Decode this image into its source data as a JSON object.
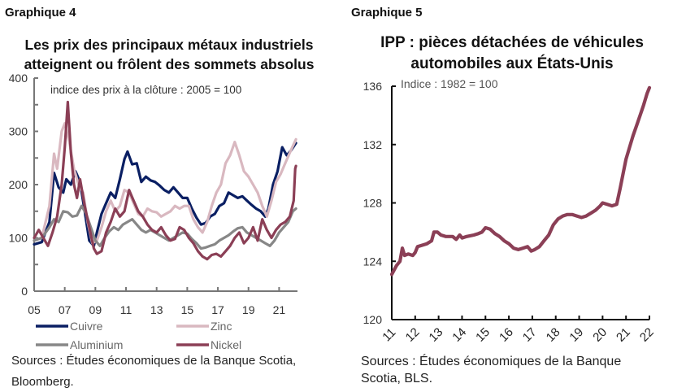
{
  "panels": [
    {
      "label": "Graphique 4"
    },
    {
      "label": "Graphique 5"
    }
  ],
  "chart_data": [
    {
      "type": "line",
      "title": "Les prix des principaux métaux industriels atteignent ou frôlent des sommets absolus",
      "title_lines": [
        "Les prix des principaux métaux industriels",
        "atteignent ou frôlent des sommets absolus"
      ],
      "annotation": "indice des prix à la clôture : 2005 = 100",
      "xlabel": "",
      "ylabel": "",
      "xlim": [
        2005,
        2022.2
      ],
      "ylim": [
        0,
        400
      ],
      "yticks": [
        0,
        100,
        200,
        300,
        400
      ],
      "ytick_labels": [
        "0",
        "100",
        "200",
        "300",
        "400"
      ],
      "xticks": [
        2005,
        2007,
        2009,
        2011,
        2013,
        2015,
        2017,
        2019,
        2021
      ],
      "xtick_labels": [
        "05",
        "07",
        "09",
        "11",
        "13",
        "15",
        "17",
        "19",
        "21"
      ],
      "legend_position": "bottom",
      "series": [
        {
          "name": "Cuivre",
          "color": "#0a1f63",
          "x": [
            2005.0,
            2005.5,
            2006.0,
            2006.3,
            2006.6,
            2006.9,
            2007.1,
            2007.4,
            2007.7,
            2008.0,
            2008.3,
            2008.6,
            2008.9,
            2009.1,
            2009.4,
            2009.7,
            2010.0,
            2010.3,
            2010.6,
            2010.9,
            2011.1,
            2011.4,
            2011.7,
            2012.0,
            2012.3,
            2012.6,
            2012.9,
            2013.2,
            2013.5,
            2013.8,
            2014.1,
            2014.4,
            2014.7,
            2015.0,
            2015.3,
            2015.6,
            2015.9,
            2016.2,
            2016.5,
            2016.8,
            2017.1,
            2017.4,
            2017.7,
            2018.0,
            2018.3,
            2018.6,
            2018.9,
            2019.2,
            2019.5,
            2019.8,
            2020.1,
            2020.3,
            2020.6,
            2020.9,
            2021.2,
            2021.5,
            2021.8,
            2022.1
          ],
          "values": [
            88,
            92,
            130,
            222,
            195,
            185,
            210,
            200,
            225,
            205,
            150,
            95,
            85,
            110,
            145,
            165,
            185,
            175,
            210,
            248,
            262,
            238,
            240,
            205,
            215,
            208,
            205,
            198,
            190,
            185,
            195,
            185,
            175,
            175,
            155,
            138,
            125,
            128,
            140,
            145,
            160,
            165,
            185,
            180,
            175,
            178,
            170,
            162,
            155,
            150,
            140,
            155,
            200,
            225,
            270,
            255,
            265,
            278
          ]
        },
        {
          "name": "Zinc",
          "color": "#d9b8c0",
          "x": [
            2005.0,
            2005.5,
            2006.0,
            2006.3,
            2006.5,
            2006.8,
            2007.0,
            2007.3,
            2007.6,
            2007.9,
            2008.2,
            2008.5,
            2008.8,
            2009.1,
            2009.4,
            2009.7,
            2010.0,
            2010.3,
            2010.6,
            2010.9,
            2011.2,
            2011.5,
            2011.8,
            2012.1,
            2012.4,
            2012.7,
            2013.0,
            2013.3,
            2013.6,
            2013.9,
            2014.2,
            2014.5,
            2014.8,
            2015.1,
            2015.4,
            2015.7,
            2016.0,
            2016.3,
            2016.6,
            2016.9,
            2017.2,
            2017.5,
            2017.8,
            2018.1,
            2018.4,
            2018.7,
            2019.0,
            2019.3,
            2019.6,
            2019.9,
            2020.2,
            2020.5,
            2020.8,
            2021.1,
            2021.4,
            2021.7,
            2022.1
          ],
          "values": [
            95,
            100,
            160,
            258,
            230,
            300,
            315,
            280,
            230,
            200,
            185,
            130,
            90,
            95,
            120,
            150,
            170,
            150,
            160,
            190,
            185,
            165,
            145,
            140,
            155,
            150,
            148,
            140,
            145,
            150,
            160,
            155,
            160,
            160,
            135,
            120,
            110,
            130,
            160,
            185,
            200,
            240,
            255,
            280,
            255,
            225,
            215,
            200,
            185,
            160,
            140,
            170,
            205,
            220,
            240,
            260,
            285
          ]
        },
        {
          "name": "Aluminium",
          "color": "#878787",
          "x": [
            2005.0,
            2005.5,
            2006.0,
            2006.3,
            2006.6,
            2006.9,
            2007.2,
            2007.5,
            2007.8,
            2008.1,
            2008.4,
            2008.7,
            2009.0,
            2009.3,
            2009.6,
            2009.9,
            2010.2,
            2010.5,
            2010.8,
            2011.1,
            2011.4,
            2011.7,
            2012.0,
            2012.3,
            2012.6,
            2012.9,
            2013.2,
            2013.5,
            2013.8,
            2014.1,
            2014.4,
            2014.7,
            2015.0,
            2015.3,
            2015.6,
            2015.9,
            2016.2,
            2016.5,
            2016.8,
            2017.1,
            2017.4,
            2017.7,
            2018.0,
            2018.3,
            2018.6,
            2018.9,
            2019.2,
            2019.5,
            2019.8,
            2020.1,
            2020.4,
            2020.7,
            2021.0,
            2021.3,
            2021.6,
            2021.9,
            2022.1
          ],
          "values": [
            95,
            100,
            120,
            135,
            130,
            150,
            148,
            140,
            142,
            160,
            145,
            120,
            95,
            85,
            100,
            112,
            120,
            115,
            125,
            130,
            135,
            125,
            115,
            110,
            115,
            110,
            105,
            100,
            95,
            100,
            105,
            110,
            108,
            98,
            90,
            80,
            82,
            85,
            88,
            95,
            100,
            105,
            112,
            118,
            120,
            110,
            105,
            100,
            95,
            90,
            85,
            95,
            110,
            120,
            130,
            150,
            155
          ]
        },
        {
          "name": "Nickel",
          "color": "#8b3f56",
          "x": [
            2005.0,
            2005.3,
            2005.6,
            2005.9,
            2006.2,
            2006.5,
            2006.8,
            2007.0,
            2007.2,
            2007.4,
            2007.6,
            2007.8,
            2008.0,
            2008.3,
            2008.6,
            2008.9,
            2009.1,
            2009.4,
            2009.7,
            2010.0,
            2010.3,
            2010.6,
            2010.9,
            2011.2,
            2011.5,
            2011.8,
            2012.1,
            2012.4,
            2012.7,
            2013.0,
            2013.3,
            2013.6,
            2013.9,
            2014.2,
            2014.5,
            2014.8,
            2015.1,
            2015.4,
            2015.7,
            2016.0,
            2016.3,
            2016.6,
            2016.9,
            2017.2,
            2017.5,
            2017.8,
            2018.1,
            2018.4,
            2018.7,
            2019.0,
            2019.3,
            2019.6,
            2019.9,
            2020.2,
            2020.5,
            2020.8,
            2021.1,
            2021.4,
            2021.7,
            2021.95,
            2022.05,
            2022.1
          ],
          "values": [
            100,
            115,
            100,
            85,
            110,
            140,
            200,
            270,
            355,
            260,
            200,
            175,
            210,
            160,
            120,
            80,
            70,
            75,
            110,
            130,
            155,
            140,
            150,
            190,
            170,
            150,
            140,
            125,
            115,
            110,
            120,
            105,
            95,
            98,
            120,
            115,
            100,
            90,
            75,
            65,
            60,
            68,
            70,
            65,
            75,
            85,
            100,
            110,
            90,
            100,
            120,
            95,
            135,
            115,
            100,
            115,
            125,
            130,
            140,
            170,
            230,
            235
          ]
        }
      ]
    },
    {
      "type": "line",
      "title": "IPP : pièces détachées de véhicules automobiles aux États-Unis",
      "title_lines": [
        "IPP : pièces détachées de véhicules",
        "automobiles aux États-Unis"
      ],
      "annotation": "Indice : 1982 = 100",
      "xlabel": "",
      "ylabel": "",
      "xlim": [
        2011,
        2022
      ],
      "ylim": [
        120,
        136
      ],
      "yticks": [
        120,
        124,
        128,
        132,
        136
      ],
      "ytick_labels": [
        "120",
        "124",
        "128",
        "132",
        "136"
      ],
      "xticks": [
        2011,
        2012,
        2013,
        2014,
        2015,
        2016,
        2017,
        2018,
        2019,
        2020,
        2021,
        2022
      ],
      "xtick_labels": [
        "11",
        "12",
        "13",
        "14",
        "15",
        "16",
        "17",
        "18",
        "19",
        "20",
        "21",
        "22"
      ],
      "series": [
        {
          "name": "IPP pièces détachées",
          "color": "#8b3f56",
          "x": [
            2011.0,
            2011.2,
            2011.35,
            2011.45,
            2011.55,
            2011.7,
            2011.9,
            2012.0,
            2012.1,
            2012.3,
            2012.5,
            2012.7,
            2012.8,
            2012.95,
            2013.1,
            2013.3,
            2013.6,
            2013.75,
            2013.9,
            2014.0,
            2014.2,
            2014.5,
            2014.7,
            2014.85,
            2015.0,
            2015.2,
            2015.4,
            2015.6,
            2015.8,
            2016.0,
            2016.2,
            2016.4,
            2016.6,
            2016.8,
            2016.95,
            2017.1,
            2017.3,
            2017.5,
            2017.7,
            2017.9,
            2018.1,
            2018.3,
            2018.5,
            2018.7,
            2018.9,
            2019.1,
            2019.3,
            2019.5,
            2019.7,
            2019.9,
            2020.0,
            2020.2,
            2020.4,
            2020.6,
            2020.75,
            2020.9,
            2021.0,
            2021.15,
            2021.3,
            2021.45,
            2021.6,
            2021.75,
            2021.9,
            2022.0
          ],
          "values": [
            123.1,
            123.7,
            124.0,
            124.9,
            124.4,
            124.5,
            124.4,
            124.6,
            125.0,
            125.1,
            125.2,
            125.4,
            126.0,
            126.0,
            125.8,
            125.7,
            125.7,
            125.5,
            125.8,
            125.6,
            125.7,
            125.8,
            125.9,
            126.0,
            126.3,
            126.2,
            125.9,
            125.7,
            125.4,
            125.2,
            124.9,
            124.8,
            124.9,
            125.0,
            124.7,
            124.8,
            125.0,
            125.4,
            125.8,
            126.5,
            126.9,
            127.1,
            127.2,
            127.2,
            127.1,
            127.0,
            127.1,
            127.3,
            127.5,
            127.8,
            128.0,
            127.9,
            127.8,
            127.9,
            129.0,
            130.2,
            131.0,
            131.8,
            132.6,
            133.3,
            134.0,
            134.7,
            135.5,
            135.9
          ]
        }
      ]
    }
  ],
  "legend": [
    {
      "label": "Cuivre",
      "color": "#0a1f63"
    },
    {
      "label": "Zinc",
      "color": "#d9b8c0"
    },
    {
      "label": "Aluminium",
      "color": "#878787"
    },
    {
      "label": "Nickel",
      "color": "#8b3f56"
    }
  ],
  "sources": [
    {
      "lines": [
        "Sources : Études économiques de la Banque Scotia,",
        "Bloomberg."
      ]
    },
    {
      "lines": [
        "Sources :  Études économiques de la Banque",
        "Scotia, BLS."
      ]
    }
  ]
}
